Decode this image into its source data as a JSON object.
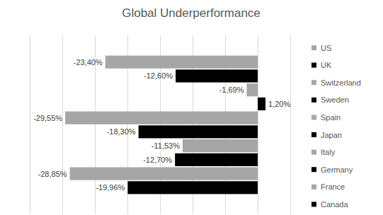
{
  "chart_data": {
    "type": "bar",
    "title": "Global Underperformance",
    "orientation": "horizontal",
    "categories": [
      null
    ],
    "series": [
      {
        "name": "US",
        "color": "#a6a6a6",
        "values": [
          -23.4
        ],
        "value_labels": [
          "-23,40%"
        ]
      },
      {
        "name": "UK",
        "color": "#000000",
        "values": [
          -12.6
        ],
        "value_labels": [
          "-12,60%"
        ]
      },
      {
        "name": "Switzerland",
        "color": "#a6a6a6",
        "values": [
          -1.69
        ],
        "value_labels": [
          "-1,69%"
        ]
      },
      {
        "name": "Sweden",
        "color": "#000000",
        "values": [
          1.2
        ],
        "value_labels": [
          "1,20%"
        ]
      },
      {
        "name": "Spain",
        "color": "#a6a6a6",
        "values": [
          -29.55
        ],
        "value_labels": [
          "-29,55%"
        ]
      },
      {
        "name": "Japan",
        "color": "#000000",
        "values": [
          -18.3
        ],
        "value_labels": [
          "-18,30%"
        ]
      },
      {
        "name": "Italy",
        "color": "#a6a6a6",
        "values": [
          -11.53
        ],
        "value_labels": [
          "-11,53%"
        ]
      },
      {
        "name": "Germany",
        "color": "#000000",
        "values": [
          -12.7
        ],
        "value_labels": [
          "-12,70%"
        ]
      },
      {
        "name": "France",
        "color": "#a6a6a6",
        "values": [
          -28.85
        ],
        "value_labels": [
          "-28,85%"
        ]
      },
      {
        "name": "Canada",
        "color": "#000000",
        "values": [
          -19.96
        ],
        "value_labels": [
          "-19,96%"
        ]
      }
    ],
    "xlim": [
      -35,
      5
    ],
    "xticks": [
      -35,
      -30,
      -25,
      -20,
      -15,
      -10,
      -5,
      0,
      5
    ],
    "grid": true,
    "tick_labels": false,
    "data_labels": true,
    "legend": "right"
  }
}
